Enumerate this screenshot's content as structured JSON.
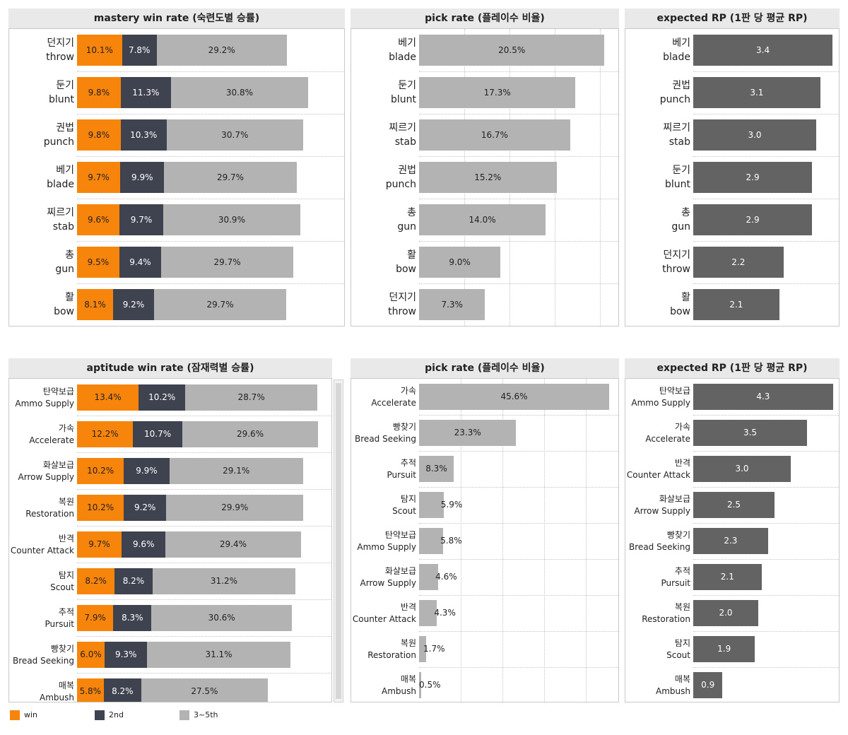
{
  "colors": {
    "win": "#f7840b",
    "second": "#3f4350",
    "third": "#b3b3b3",
    "rp": "#636363",
    "pick": "#b3b3b3"
  },
  "legend": [
    {
      "key": "win",
      "label": "win"
    },
    {
      "key": "second",
      "label": "2nd"
    },
    {
      "key": "third",
      "label": "3~5th"
    }
  ],
  "chart_data": [
    {
      "id": "mastery_win",
      "type": "bar",
      "stacked": true,
      "title": "mastery win rate (숙련도별 승률)",
      "categories": [
        {
          "ko": "던지기",
          "en": "throw"
        },
        {
          "ko": "둔기",
          "en": "blunt"
        },
        {
          "ko": "권법",
          "en": "punch"
        },
        {
          "ko": "베기",
          "en": "blade"
        },
        {
          "ko": "찌르기",
          "en": "stab"
        },
        {
          "ko": "총",
          "en": "gun"
        },
        {
          "ko": "활",
          "en": "bow"
        }
      ],
      "series": [
        {
          "name": "win",
          "values": [
            10.1,
            9.8,
            9.8,
            9.7,
            9.6,
            9.5,
            8.1
          ],
          "labels": [
            "10.1%",
            "9.8%",
            "9.8%",
            "9.7%",
            "9.6%",
            "9.5%",
            "8.1%"
          ]
        },
        {
          "name": "2nd",
          "values": [
            7.8,
            11.3,
            10.3,
            9.9,
            9.7,
            9.4,
            9.2
          ],
          "labels": [
            "7.8%",
            "11.3%",
            "10.3%",
            "9.9%",
            "9.7%",
            "9.4%",
            "9.2%"
          ]
        },
        {
          "name": "3~5th",
          "values": [
            29.2,
            30.8,
            30.7,
            29.7,
            30.9,
            29.7,
            29.7
          ],
          "labels": [
            "29.2%",
            "30.8%",
            "30.7%",
            "29.7%",
            "30.9%",
            "29.7%",
            "29.7%"
          ]
        }
      ]
    },
    {
      "id": "mastery_pick",
      "type": "bar",
      "title": "pick rate (플레이수 비율)",
      "categories": [
        {
          "ko": "베기",
          "en": "blade"
        },
        {
          "ko": "둔기",
          "en": "blunt"
        },
        {
          "ko": "찌르기",
          "en": "stab"
        },
        {
          "ko": "권법",
          "en": "punch"
        },
        {
          "ko": "총",
          "en": "gun"
        },
        {
          "ko": "활",
          "en": "bow"
        },
        {
          "ko": "던지기",
          "en": "throw"
        }
      ],
      "values": [
        20.5,
        17.3,
        16.7,
        15.2,
        14.0,
        9.0,
        7.3
      ],
      "labels": [
        "20.5%",
        "17.3%",
        "16.7%",
        "15.2%",
        "14.0%",
        "9.0%",
        "7.3%"
      ]
    },
    {
      "id": "mastery_rp",
      "type": "bar",
      "title": "expected RP (1판 당 평균 RP)",
      "categories": [
        {
          "ko": "베기",
          "en": "blade"
        },
        {
          "ko": "권법",
          "en": "punch"
        },
        {
          "ko": "찌르기",
          "en": "stab"
        },
        {
          "ko": "둔기",
          "en": "blunt"
        },
        {
          "ko": "총",
          "en": "gun"
        },
        {
          "ko": "던지기",
          "en": "throw"
        },
        {
          "ko": "활",
          "en": "bow"
        }
      ],
      "values": [
        3.4,
        3.1,
        3.0,
        2.9,
        2.9,
        2.2,
        2.1
      ],
      "labels": [
        "3.4",
        "3.1",
        "3.0",
        "2.9",
        "2.9",
        "2.2",
        "2.1"
      ]
    },
    {
      "id": "aptitude_win",
      "type": "bar",
      "stacked": true,
      "title": "aptitude win rate (잠재력별 승률)",
      "categories": [
        {
          "ko": "탄약보급",
          "en": "Ammo Supply"
        },
        {
          "ko": "가속",
          "en": "Accelerate"
        },
        {
          "ko": "화살보급",
          "en": "Arrow Supply"
        },
        {
          "ko": "복원",
          "en": "Restoration"
        },
        {
          "ko": "반격",
          "en": "Counter Attack"
        },
        {
          "ko": "탐지",
          "en": "Scout"
        },
        {
          "ko": "추적",
          "en": "Pursuit"
        },
        {
          "ko": "빵찾기",
          "en": "Bread Seeking"
        },
        {
          "ko": "매복",
          "en": "Ambush"
        }
      ],
      "series": [
        {
          "name": "win",
          "values": [
            13.4,
            12.2,
            10.2,
            10.2,
            9.7,
            8.2,
            7.9,
            6.0,
            5.8
          ],
          "labels": [
            "13.4%",
            "12.2%",
            "10.2%",
            "10.2%",
            "9.7%",
            "8.2%",
            "7.9%",
            "6.0%",
            "5.8%"
          ]
        },
        {
          "name": "2nd",
          "values": [
            10.2,
            10.7,
            9.9,
            9.2,
            9.6,
            8.2,
            8.3,
            9.3,
            8.2
          ],
          "labels": [
            "10.2%",
            "10.7%",
            "9.9%",
            "9.2%",
            "9.6%",
            "8.2%",
            "8.3%",
            "9.3%",
            "8.2%"
          ]
        },
        {
          "name": "3~5th",
          "values": [
            28.7,
            29.6,
            29.1,
            29.9,
            29.4,
            31.2,
            30.6,
            31.1,
            27.5
          ],
          "labels": [
            "28.7%",
            "29.6%",
            "29.1%",
            "29.9%",
            "29.4%",
            "31.2%",
            "30.6%",
            "31.1%",
            "27.5%"
          ]
        }
      ]
    },
    {
      "id": "aptitude_pick",
      "type": "bar",
      "title": "pick rate (플레이수 비율)",
      "categories": [
        {
          "ko": "가속",
          "en": "Accelerate"
        },
        {
          "ko": "빵찾기",
          "en": "Bread Seeking"
        },
        {
          "ko": "추적",
          "en": "Pursuit"
        },
        {
          "ko": "탐지",
          "en": "Scout"
        },
        {
          "ko": "탄약보급",
          "en": "Ammo Supply"
        },
        {
          "ko": "화살보급",
          "en": "Arrow Supply"
        },
        {
          "ko": "반격",
          "en": "Counter Attack"
        },
        {
          "ko": "복원",
          "en": "Restoration"
        },
        {
          "ko": "매복",
          "en": "Ambush"
        }
      ],
      "values": [
        45.6,
        23.3,
        8.3,
        5.9,
        5.8,
        4.6,
        4.3,
        1.7,
        0.5
      ],
      "labels": [
        "45.6%",
        "23.3%",
        "8.3%",
        "5.9%",
        "5.8%",
        "4.6%",
        "4.3%",
        "1.7%",
        "0.5%"
      ]
    },
    {
      "id": "aptitude_rp",
      "type": "bar",
      "title": "expected RP (1판 당 평균 RP)",
      "categories": [
        {
          "ko": "탄약보급",
          "en": "Ammo Supply"
        },
        {
          "ko": "가속",
          "en": "Accelerate"
        },
        {
          "ko": "반격",
          "en": "Counter Attack"
        },
        {
          "ko": "화살보급",
          "en": "Arrow Supply"
        },
        {
          "ko": "빵찾기",
          "en": "Bread Seeking"
        },
        {
          "ko": "추적",
          "en": "Pursuit"
        },
        {
          "ko": "복원",
          "en": "Restoration"
        },
        {
          "ko": "탐지",
          "en": "Scout"
        },
        {
          "ko": "매복",
          "en": "Ambush"
        }
      ],
      "values": [
        4.3,
        3.5,
        3.0,
        2.5,
        2.3,
        2.1,
        2.0,
        1.9,
        0.9
      ],
      "labels": [
        "4.3",
        "3.5",
        "3.0",
        "2.5",
        "2.3",
        "2.1",
        "2.0",
        "1.9",
        "0.9"
      ]
    }
  ]
}
